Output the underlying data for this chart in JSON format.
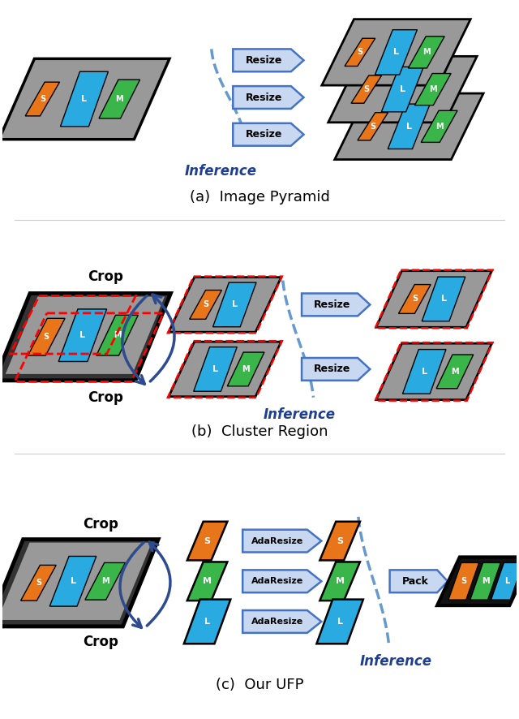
{
  "fig_width": 6.4,
  "fig_height": 8.86,
  "bg_color": "#ffffff",
  "orange_color": "#E8751A",
  "cyan_color": "#29ABE2",
  "green_color": "#39B54A",
  "blue_arrow": "#4472C4",
  "blue_dark": "#2E4B8F",
  "red_dashed": "#FF0000",
  "dashed_blue": "#6699CC",
  "gray_bg": "#999999",
  "dark_bg": "#333333",
  "black_bg": "#111111",
  "section_titles": [
    "(a)  Image Pyramid",
    "(b)  Cluster Region",
    "(c)  Our UFP"
  ],
  "inference_color": "#1F3F8F",
  "resize_fill": "#C8D8F0",
  "resize_border": "#4472C4"
}
